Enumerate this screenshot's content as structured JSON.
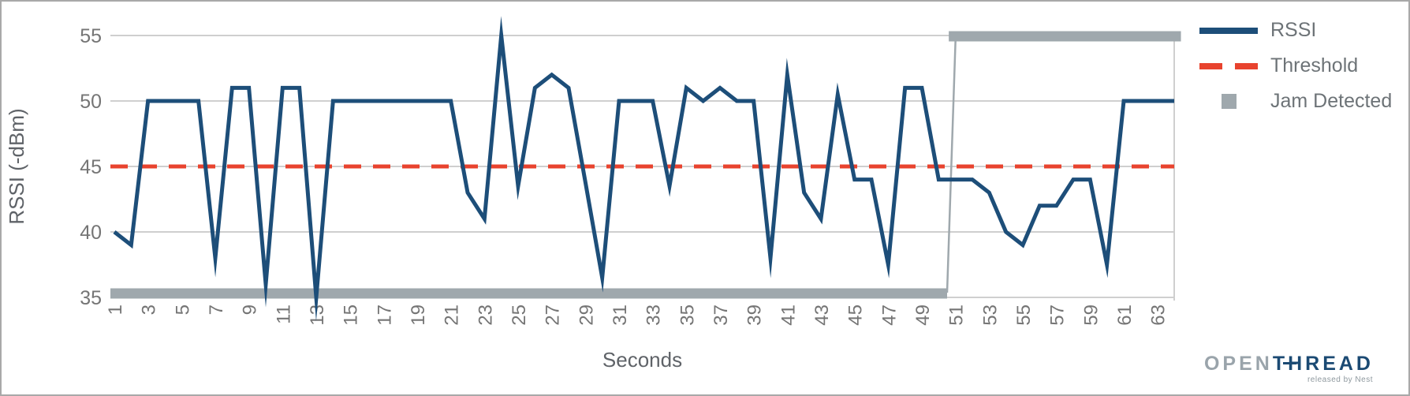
{
  "chart_data": {
    "type": "line",
    "title": "",
    "xlabel": "Seconds",
    "ylabel": "RSSI (-dBm)",
    "ylim": [
      35,
      55
    ],
    "yticks": [
      35,
      40,
      45,
      50,
      55
    ],
    "xticks": [
      1,
      3,
      5,
      7,
      9,
      11,
      13,
      15,
      17,
      19,
      21,
      23,
      25,
      27,
      29,
      31,
      33,
      35,
      37,
      39,
      41,
      43,
      45,
      47,
      49,
      51,
      53,
      55,
      57,
      59,
      61,
      63
    ],
    "grid": true,
    "legend_position": "right-top",
    "x": [
      1,
      2,
      3,
      4,
      5,
      6,
      7,
      8,
      9,
      10,
      11,
      12,
      13,
      14,
      15,
      16,
      17,
      18,
      19,
      20,
      21,
      22,
      23,
      24,
      25,
      26,
      27,
      28,
      29,
      30,
      31,
      32,
      33,
      34,
      35,
      36,
      37,
      38,
      39,
      40,
      41,
      42,
      43,
      44,
      45,
      46,
      47,
      48,
      49,
      50,
      51,
      52,
      53,
      54,
      55,
      56,
      57,
      58,
      59,
      60,
      61,
      62,
      63,
      64
    ],
    "series": [
      {
        "name": "RSSI",
        "type": "line",
        "color": "#1d4e79",
        "values": [
          40,
          39,
          50,
          50,
          50,
          50,
          38,
          51,
          51,
          36,
          51,
          51,
          35,
          50,
          50,
          50,
          50,
          50,
          50,
          50,
          50,
          43,
          41,
          55,
          43.5,
          51,
          52,
          51,
          43.8,
          36.5,
          50,
          50,
          50,
          43.5,
          51,
          50,
          51,
          50,
          50,
          38,
          52,
          43,
          41,
          50.5,
          44,
          44,
          37.5,
          51,
          51,
          44,
          44,
          44,
          43,
          40,
          39,
          42,
          42,
          44,
          44,
          37.5,
          50,
          50,
          50,
          50
        ]
      },
      {
        "name": "Threshold",
        "type": "hline",
        "style": "dashed",
        "color": "#e8432e",
        "value": 45
      },
      {
        "name": "Jam Detected",
        "type": "step",
        "color": "#9fa8ad",
        "segments": [
          {
            "x_start": 1,
            "x_end": 50.5,
            "value": 35
          },
          {
            "x_start": 50.6,
            "x_end": 64.4,
            "value": 55
          }
        ]
      }
    ],
    "colors": {
      "grid": "#cfcfcf",
      "tick_text": "#757575",
      "axis_title_text": "#5f6368"
    }
  },
  "legend": {
    "items": [
      {
        "label": "RSSI"
      },
      {
        "label": "Threshold"
      },
      {
        "label": "Jam Detected"
      }
    ]
  },
  "branding": {
    "open": "OPEN",
    "thread": "THREAD",
    "tagline": "released by Nest"
  }
}
